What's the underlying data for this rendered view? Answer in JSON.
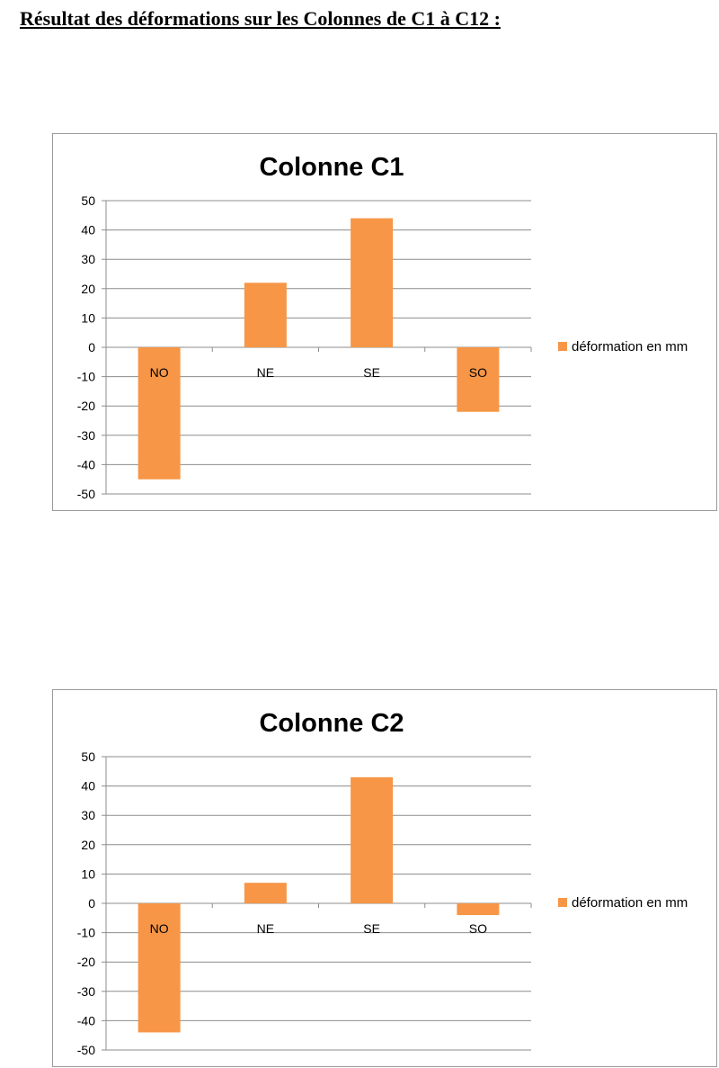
{
  "page": {
    "heading": "Résultat des déformations sur les Colonnes de C1 à C12 :"
  },
  "chart_data": [
    {
      "type": "bar",
      "title": "Colonne C1",
      "categories": [
        "NO",
        "NE",
        "SE",
        "SO"
      ],
      "series": [
        {
          "name": "déformation en mm",
          "values": [
            -45,
            22,
            44,
            -22
          ],
          "color": "#f79646"
        }
      ],
      "ylim": [
        -50,
        50
      ],
      "yticks": [
        50,
        40,
        30,
        20,
        10,
        0,
        -10,
        -20,
        -30,
        -40,
        -50
      ],
      "grid": true,
      "legend_position": "right"
    },
    {
      "type": "bar",
      "title": "Colonne C2",
      "categories": [
        "NO",
        "NE",
        "SE",
        "SO"
      ],
      "series": [
        {
          "name": "déformation en mm",
          "values": [
            -44,
            7,
            43,
            -4
          ],
          "color": "#f79646"
        }
      ],
      "ylim": [
        -50,
        50
      ],
      "yticks": [
        50,
        40,
        30,
        20,
        10,
        0,
        -10,
        -20,
        -30,
        -40,
        -50
      ],
      "grid": true,
      "legend_position": "right"
    }
  ]
}
